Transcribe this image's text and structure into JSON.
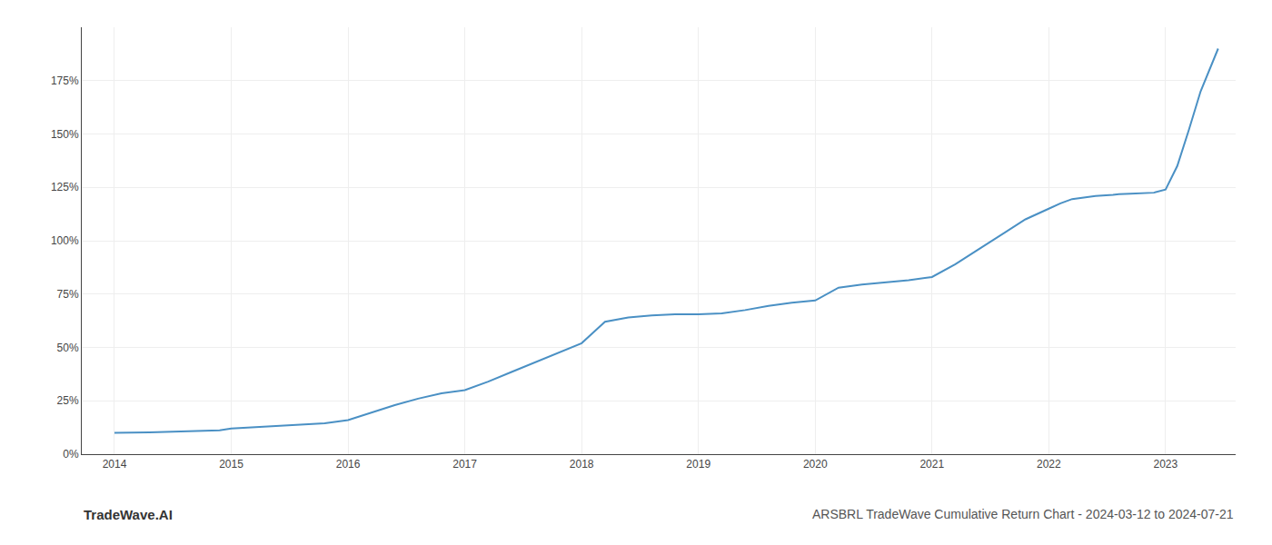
{
  "chart_data": {
    "type": "line",
    "title": "ARSBRL TradeWave Cumulative Return Chart - 2024-03-12 to 2024-07-21",
    "annotations": [
      "TradeWave.AI"
    ],
    "x": [
      2014.0,
      2014.1,
      2014.3,
      2014.5,
      2014.7,
      2014.9,
      2015.0,
      2015.1,
      2015.2,
      2015.4,
      2015.6,
      2015.8,
      2016.0,
      2016.2,
      2016.4,
      2016.6,
      2016.8,
      2017.0,
      2017.2,
      2017.4,
      2017.6,
      2017.8,
      2018.0,
      2018.1,
      2018.2,
      2018.4,
      2018.6,
      2018.8,
      2019.0,
      2019.2,
      2019.4,
      2019.6,
      2019.8,
      2020.0,
      2020.1,
      2020.2,
      2020.4,
      2020.6,
      2020.8,
      2021.0,
      2021.2,
      2021.4,
      2021.6,
      2021.8,
      2022.0,
      2022.1,
      2022.2,
      2022.4,
      2022.55,
      2022.6,
      2022.7,
      2022.8,
      2022.9,
      2023.0,
      2023.1,
      2023.2,
      2023.3,
      2023.45
    ],
    "values": [
      10.0,
      10.0,
      10.2,
      10.5,
      10.8,
      11.2,
      12.0,
      12.3,
      12.8,
      13.2,
      13.8,
      14.5,
      16.0,
      19.5,
      23.0,
      26.0,
      28.5,
      30.0,
      34.0,
      38.5,
      43.0,
      47.5,
      52.0,
      57.0,
      62.0,
      64.0,
      65.0,
      65.5,
      65.5,
      66.0,
      67.5,
      69.5,
      71.0,
      72.0,
      75.0,
      78.0,
      79.5,
      80.5,
      81.5,
      83.0,
      89.0,
      96.0,
      103.0,
      110.0,
      115.0,
      117.5,
      119.5,
      121.0,
      121.5,
      121.8,
      122.0,
      122.2,
      122.5,
      124.0,
      135.0,
      152.0,
      170.0,
      190.0
    ],
    "color": "#4a90c4",
    "xlim": [
      2013.72,
      2023.6
    ],
    "xticks": [
      2014,
      2015,
      2016,
      2017,
      2018,
      2019,
      2020,
      2021,
      2022,
      2023
    ],
    "ylim": [
      0,
      200
    ],
    "yticks": [
      {
        "value": 0,
        "label": "0%"
      },
      {
        "value": 25,
        "label": "25%"
      },
      {
        "value": 50,
        "label": "50%"
      },
      {
        "value": 75,
        "label": "75%"
      },
      {
        "value": 100,
        "label": "100%"
      },
      {
        "value": 125,
        "label": "125%"
      },
      {
        "value": 150,
        "label": "150%"
      },
      {
        "value": 175,
        "label": "175%"
      }
    ],
    "grid": true
  }
}
